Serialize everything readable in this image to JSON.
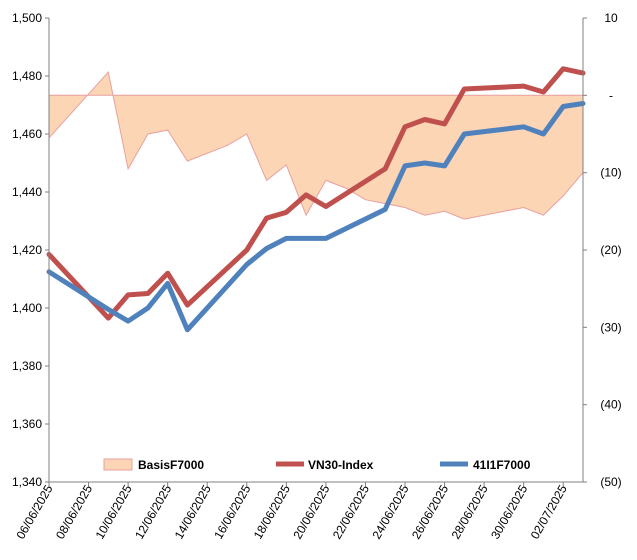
{
  "chart_data": {
    "type": "line",
    "title": "",
    "xlabel": "",
    "ylabel": "",
    "ylim": [
      1340,
      1500
    ],
    "y2lim": [
      -50,
      10
    ],
    "y_ticks": [
      "1,340",
      "1,360",
      "1,380",
      "1,400",
      "1,420",
      "1,440",
      "1,460",
      "1,480",
      "1,500"
    ],
    "y2_ticks": [
      "(50)",
      "(40)",
      "(30)",
      "(20)",
      "(10)",
      "-",
      "10"
    ],
    "x_ticks": [
      "06/06/2025",
      "08/06/2025",
      "10/06/2025",
      "12/06/2025",
      "14/06/2025",
      "16/06/2025",
      "18/06/2025",
      "20/06/2025",
      "22/06/2025",
      "24/06/2025",
      "26/06/2025",
      "28/06/2025",
      "30/06/2025",
      "02/07/2025"
    ],
    "x_start": "2025-06-06",
    "grid": false,
    "legend_position": "bottom",
    "colors": {
      "basis_fill": "#fcd5b4",
      "basis_stroke": "#e8a0a0",
      "vn30": "#c0504d",
      "f": "#4f81bd"
    },
    "series": [
      {
        "name": "BasisF7000",
        "type": "area",
        "axis": "right",
        "x": [
          "2025-06-06",
          "2025-06-09",
          "2025-06-10",
          "2025-06-11",
          "2025-06-12",
          "2025-06-13",
          "2025-06-14",
          "2025-06-15",
          "2025-06-16",
          "2025-06-17",
          "2025-06-18",
          "2025-06-19",
          "2025-06-20",
          "2025-06-21",
          "2025-06-22",
          "2025-06-23",
          "2025-06-24",
          "2025-06-25",
          "2025-06-26",
          "2025-06-27",
          "2025-06-30",
          "2025-07-01",
          "2025-07-02",
          "2025-07-03"
        ],
        "values": [
          -5.5,
          3.0,
          -9.5,
          -5.0,
          -4.5,
          -8.5,
          -7.5,
          -6.5,
          -5.0,
          -11.0,
          -9.0,
          -15.5,
          -11.0,
          -12.0,
          -13.5,
          -14.0,
          -14.5,
          -15.5,
          -15.0,
          -16.0,
          -14.5,
          -15.5,
          -13.0,
          -10.0
        ]
      },
      {
        "name": "VN30-Index",
        "type": "line",
        "axis": "left",
        "x": [
          "2025-06-06",
          "2025-06-09",
          "2025-06-10",
          "2025-06-11",
          "2025-06-12",
          "2025-06-13",
          "2025-06-16",
          "2025-06-17",
          "2025-06-18",
          "2025-06-19",
          "2025-06-20",
          "2025-06-23",
          "2025-06-24",
          "2025-06-25",
          "2025-06-26",
          "2025-06-27",
          "2025-06-30",
          "2025-07-01",
          "2025-07-02",
          "2025-07-03"
        ],
        "values": [
          1418.5,
          1396.5,
          1404.5,
          1405.0,
          1412.0,
          1401.0,
          1420.0,
          1431.0,
          1433.0,
          1439.0,
          1435.0,
          1448.0,
          1462.5,
          1465.0,
          1463.5,
          1475.5,
          1476.5,
          1474.5,
          1482.5,
          1481.0
        ]
      },
      {
        "name": "41I1F7000",
        "type": "line",
        "axis": "left",
        "x": [
          "2025-06-06",
          "2025-06-09",
          "2025-06-10",
          "2025-06-11",
          "2025-06-12",
          "2025-06-13",
          "2025-06-16",
          "2025-06-17",
          "2025-06-18",
          "2025-06-19",
          "2025-06-20",
          "2025-06-23",
          "2025-06-24",
          "2025-06-25",
          "2025-06-26",
          "2025-06-27",
          "2025-06-30",
          "2025-07-01",
          "2025-07-02",
          "2025-07-03"
        ],
        "values": [
          1412.5,
          1399.5,
          1395.5,
          1400.0,
          1408.5,
          1392.5,
          1415.0,
          1420.5,
          1424.0,
          1424.0,
          1424.0,
          1434.0,
          1449.0,
          1450.0,
          1449.0,
          1460.0,
          1462.5,
          1460.0,
          1469.5,
          1470.5
        ]
      }
    ]
  }
}
